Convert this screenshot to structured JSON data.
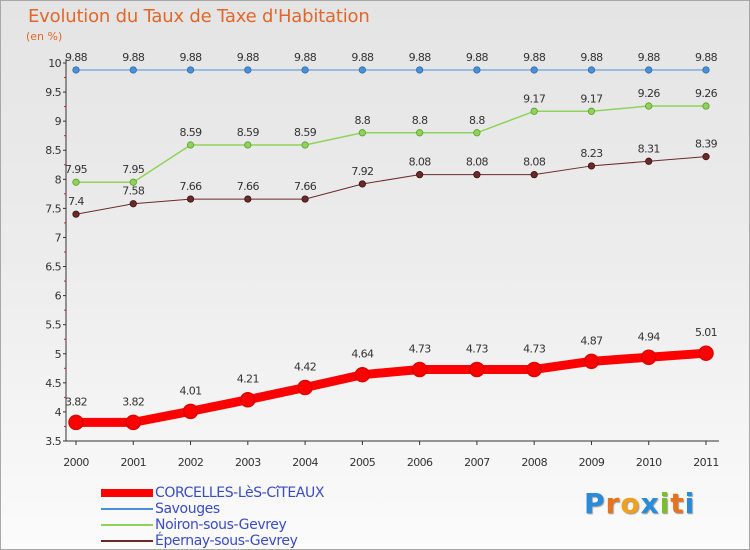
{
  "title": "Evolution du Taux de Taxe d'Habitation",
  "subtitle": "(en %)",
  "logo": {
    "letters": [
      "P",
      "r",
      "o",
      "x",
      "i",
      "t",
      "i"
    ],
    "colors": [
      "#2a8bd8",
      "#e8731f",
      "#f0a020",
      "#2a8bd8",
      "#7bbf2a",
      "#e8731f",
      "#2a8bd8"
    ]
  },
  "chart_data": {
    "type": "line",
    "title": "Evolution du Taux de Taxe d'Habitation",
    "ylabel": "(en %)",
    "xlabel": "",
    "ylim": [
      3.5,
      10
    ],
    "grid": false,
    "legend": "bottom-left",
    "x": [
      "2000",
      "2001",
      "2002",
      "2003",
      "2004",
      "2005",
      "2006",
      "2007",
      "2008",
      "2009",
      "2010",
      "2011"
    ],
    "yticks": [
      "3.5",
      "4",
      "4.5",
      "5",
      "5.5",
      "6",
      "6.5",
      "7",
      "7.5",
      "8",
      "8.5",
      "9",
      "9.5",
      "10"
    ],
    "series": [
      {
        "name": "CORCELLES-LèS-CîTEAUX",
        "color": "#ff0000",
        "values": [
          3.82,
          3.82,
          4.01,
          4.21,
          4.42,
          4.64,
          4.73,
          4.73,
          4.73,
          4.87,
          4.94,
          5.01
        ],
        "labels": [
          "3.82",
          "3.82",
          "4.01",
          "4.21",
          "4.42",
          "4.64",
          "4.73",
          "4.73",
          "4.73",
          "4.87",
          "4.94",
          "5.01"
        ]
      },
      {
        "name": "Savouges",
        "color": "#4a90d9",
        "values": [
          9.88,
          9.88,
          9.88,
          9.88,
          9.88,
          9.88,
          9.88,
          9.88,
          9.88,
          9.88,
          9.88,
          9.88
        ],
        "labels": [
          "9.88",
          "9.88",
          "9.88",
          "9.88",
          "9.88",
          "9.88",
          "9.88",
          "9.88",
          "9.88",
          "9.88",
          "9.88",
          "9.88"
        ]
      },
      {
        "name": "Noiron-sous-Gevrey",
        "color": "#8fd45a",
        "values": [
          7.95,
          7.95,
          8.59,
          8.59,
          8.59,
          8.8,
          8.8,
          8.8,
          9.17,
          9.17,
          9.26,
          9.26
        ],
        "labels": [
          "7.95",
          "7.95",
          "8.59",
          "8.59",
          "8.59",
          "8.8",
          "8.8",
          "8.8",
          "9.17",
          "9.17",
          "9.26",
          "9.26"
        ]
      },
      {
        "name": "Épernay-sous-Gevrey",
        "color": "#6b2a2a",
        "values": [
          7.4,
          7.58,
          7.66,
          7.66,
          7.66,
          7.92,
          8.08,
          8.08,
          8.08,
          8.23,
          8.31,
          8.39
        ],
        "labels": [
          "7.4",
          "7.58",
          "7.66",
          "7.66",
          "7.66",
          "7.92",
          "8.08",
          "8.08",
          "8.08",
          "8.23",
          "8.31",
          "8.39"
        ]
      }
    ]
  }
}
